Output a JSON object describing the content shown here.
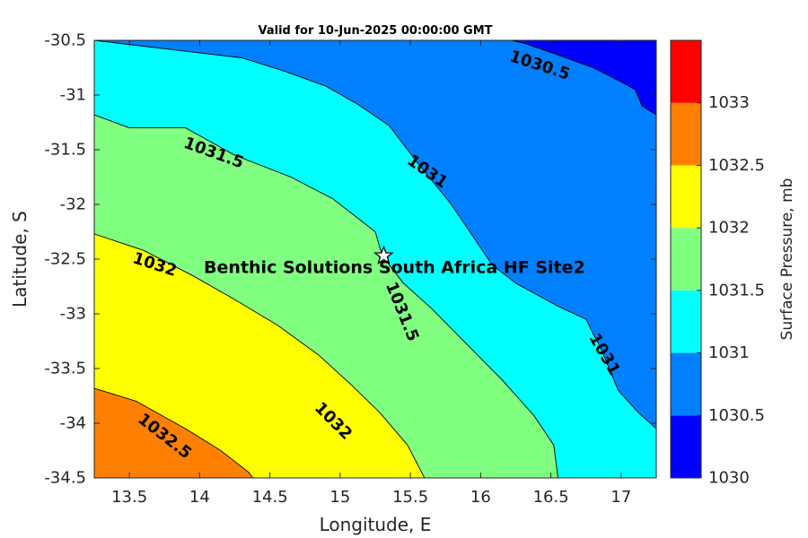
{
  "chart_data": {
    "type": "contour",
    "title": "Valid for 10-Jun-2025 00:00:00 GMT",
    "xlabel": "Longitude, E",
    "ylabel": "Latitude, S",
    "xlim": [
      13.25,
      17.25
    ],
    "ylim": [
      -34.5,
      -30.5
    ],
    "xticks": [
      13.5,
      14,
      14.5,
      15,
      15.5,
      16,
      16.5,
      17
    ],
    "xtick_labels": [
      "13.5",
      "14",
      "14.5",
      "15",
      "15.5",
      "16",
      "16.5",
      "17"
    ],
    "yticks": [
      -30.5,
      -31,
      -31.5,
      -32,
      -32.5,
      -33,
      -33.5,
      -34,
      -34.5
    ],
    "ytick_labels": [
      "-30.5",
      "-31",
      "-31.5",
      "-32",
      "-32.5",
      "-33",
      "-33.5",
      "-34",
      "-34.5"
    ],
    "grid": false,
    "colorbar": {
      "label": "Surface Pressure, mb",
      "range": [
        1030,
        1033
      ],
      "ticks": [
        "1030",
        "1030.5",
        "1031",
        "1031.5",
        "1032",
        "1032.5",
        "1033"
      ],
      "bands": [
        {
          "from": 1030.0,
          "to": 1030.5,
          "color": "#0000ff"
        },
        {
          "from": 1030.5,
          "to": 1031.0,
          "color": "#0080ff"
        },
        {
          "from": 1031.0,
          "to": 1031.5,
          "color": "#00ffff"
        },
        {
          "from": 1031.5,
          "to": 1032.0,
          "color": "#80ff80"
        },
        {
          "from": 1032.0,
          "to": 1032.5,
          "color": "#ffff00"
        },
        {
          "from": 1032.5,
          "to": 1033.0,
          "color": "#ff8000"
        },
        {
          "from": 1033.0,
          "to": 1033.5,
          "color": "#ff0000"
        }
      ]
    },
    "contours": [
      {
        "level": 1030.5,
        "points": [
          [
            16.22,
            -30.5
          ],
          [
            16.32,
            -30.53
          ],
          [
            16.52,
            -30.62
          ],
          [
            16.8,
            -30.75
          ],
          [
            17.0,
            -30.88
          ],
          [
            17.1,
            -30.95
          ],
          [
            17.15,
            -31.1
          ],
          [
            17.25,
            -31.18
          ]
        ]
      },
      {
        "level": 1031.0,
        "points": [
          [
            13.25,
            -30.5
          ],
          [
            14.3,
            -30.66
          ],
          [
            14.6,
            -30.78
          ],
          [
            14.9,
            -30.92
          ],
          [
            15.12,
            -31.08
          ],
          [
            15.35,
            -31.28
          ],
          [
            15.55,
            -31.62
          ],
          [
            15.78,
            -31.98
          ],
          [
            15.95,
            -32.3
          ],
          [
            16.08,
            -32.55
          ],
          [
            16.25,
            -32.72
          ],
          [
            16.55,
            -32.93
          ],
          [
            16.75,
            -33.05
          ],
          [
            16.8,
            -33.18
          ],
          [
            16.85,
            -33.3
          ],
          [
            16.98,
            -33.7
          ],
          [
            17.12,
            -33.9
          ],
          [
            17.25,
            -34.05
          ]
        ]
      },
      {
        "level": 1031.5,
        "points": [
          [
            13.25,
            -31.18
          ],
          [
            13.5,
            -31.3
          ],
          [
            13.9,
            -31.3
          ],
          [
            14.25,
            -31.55
          ],
          [
            14.65,
            -31.75
          ],
          [
            14.95,
            -31.95
          ],
          [
            15.25,
            -32.25
          ],
          [
            15.3,
            -32.47
          ],
          [
            15.45,
            -32.72
          ],
          [
            15.65,
            -32.95
          ],
          [
            15.88,
            -33.25
          ],
          [
            16.15,
            -33.6
          ],
          [
            16.38,
            -33.93
          ],
          [
            16.52,
            -34.2
          ],
          [
            16.55,
            -34.5
          ]
        ]
      },
      {
        "level": 1032.0,
        "points": [
          [
            13.25,
            -32.27
          ],
          [
            13.6,
            -32.42
          ],
          [
            13.95,
            -32.65
          ],
          [
            14.25,
            -32.87
          ],
          [
            14.55,
            -33.1
          ],
          [
            14.85,
            -33.38
          ],
          [
            15.08,
            -33.65
          ],
          [
            15.28,
            -33.9
          ],
          [
            15.48,
            -34.2
          ],
          [
            15.6,
            -34.5
          ]
        ]
      },
      {
        "level": 1032.5,
        "points": [
          [
            13.25,
            -33.68
          ],
          [
            13.55,
            -33.8
          ],
          [
            13.9,
            -34.05
          ],
          [
            14.15,
            -34.25
          ],
          [
            14.35,
            -34.45
          ],
          [
            14.38,
            -34.5
          ]
        ]
      }
    ],
    "contour_labels": [
      {
        "text": "1030.5",
        "lon": 16.42,
        "lat": -30.73,
        "angle": 18
      },
      {
        "text": "1031",
        "lon": 15.62,
        "lat": -31.7,
        "angle": 35
      },
      {
        "text": "1031",
        "lon": 16.88,
        "lat": -33.37,
        "angle": 60
      },
      {
        "text": "1031.5",
        "lon": 14.1,
        "lat": -31.53,
        "angle": 20
      },
      {
        "text": "1031.5",
        "lon": 15.44,
        "lat": -32.98,
        "angle": 68
      },
      {
        "text": "1032",
        "lon": 13.68,
        "lat": -32.55,
        "angle": 18
      },
      {
        "text": "1032",
        "lon": 14.95,
        "lat": -33.98,
        "angle": 45
      },
      {
        "text": "1032.5",
        "lon": 13.75,
        "lat": -34.12,
        "angle": 38
      }
    ],
    "site": {
      "name": "Benthic Solutions South Africa HF Site2",
      "lon": 15.31,
      "lat": -32.47,
      "marker": "star"
    }
  }
}
